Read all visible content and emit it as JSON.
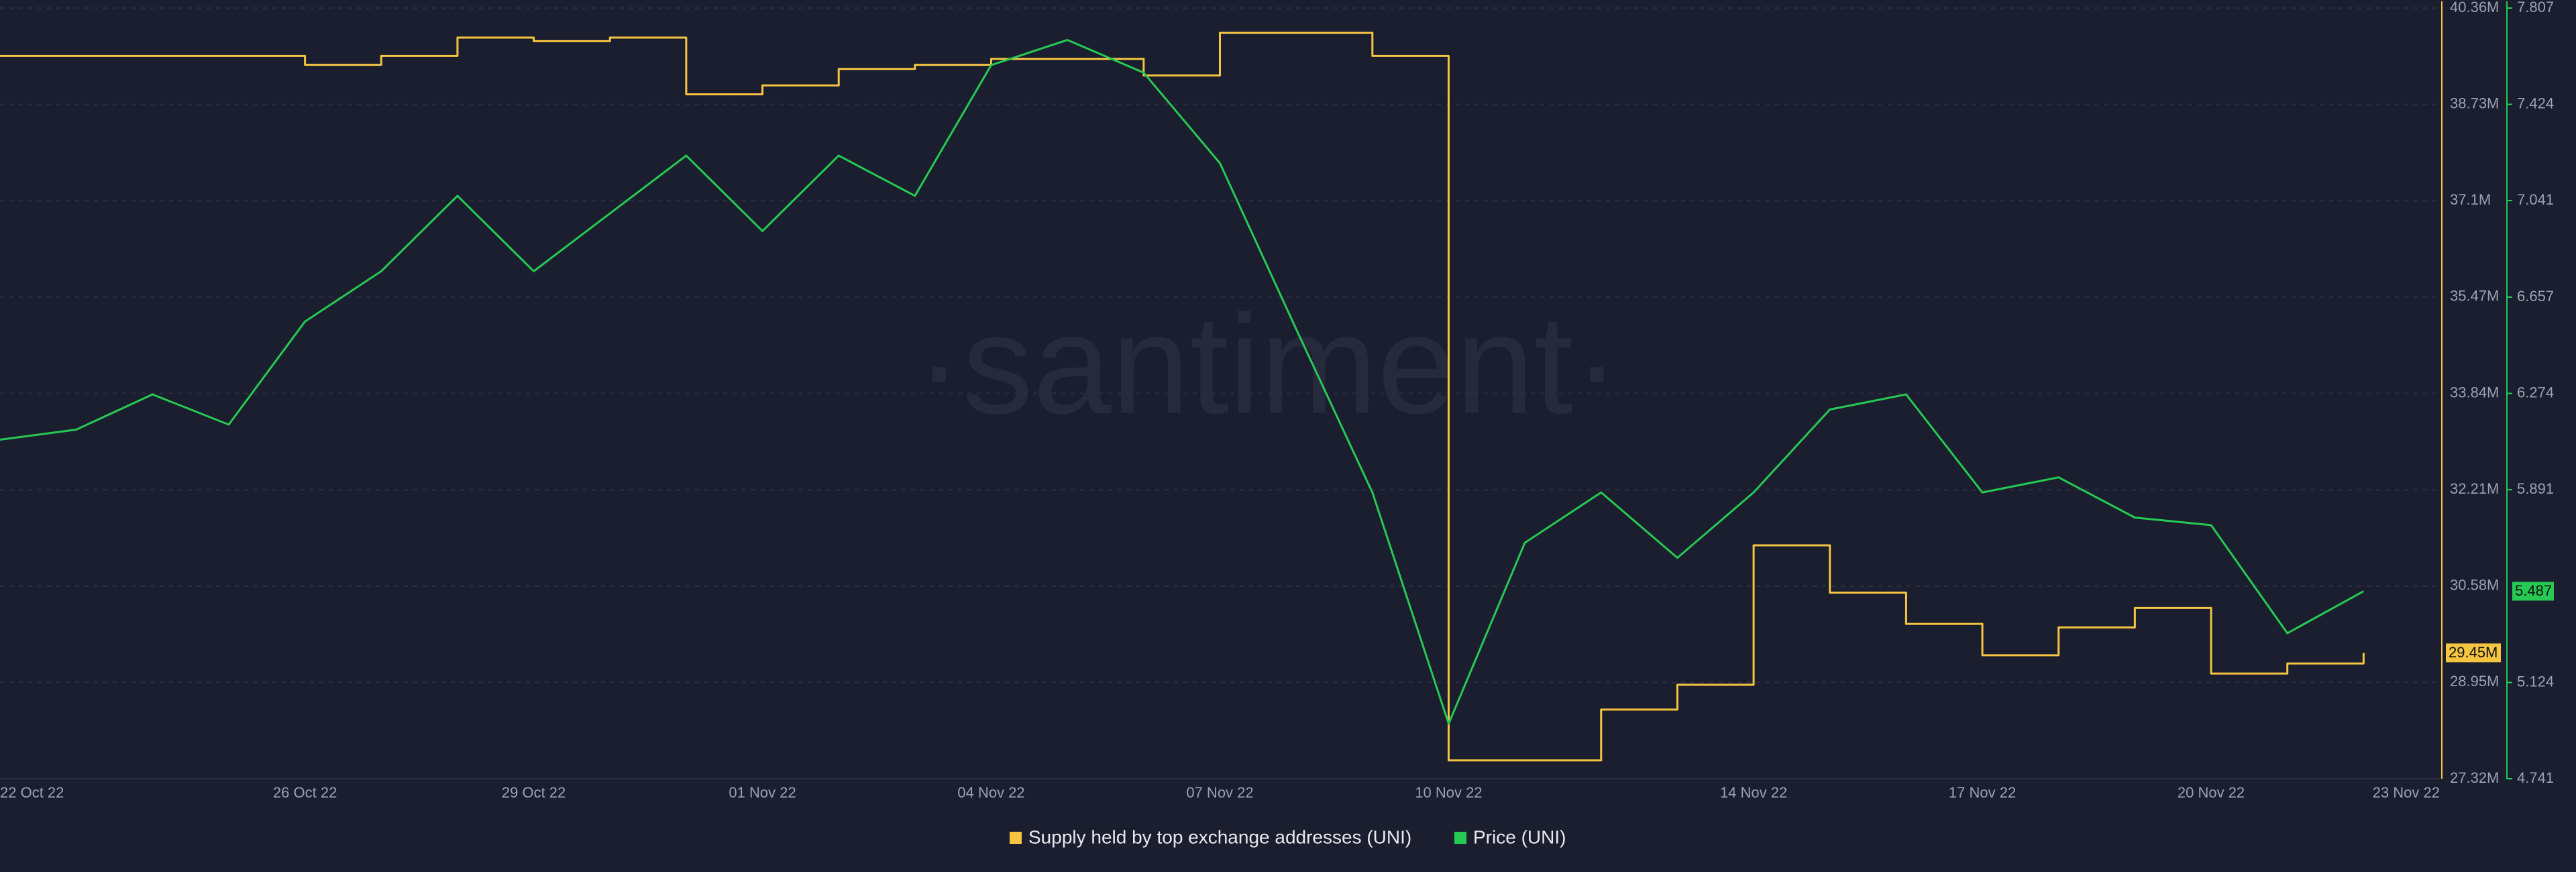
{
  "chart_data": {
    "type": "line",
    "watermark": "·santiment·",
    "x": [
      "2022-10-22",
      "2022-10-23",
      "2022-10-24",
      "2022-10-25",
      "2022-10-26",
      "2022-10-27",
      "2022-10-28",
      "2022-10-29",
      "2022-10-30",
      "2022-10-31",
      "2022-11-01",
      "2022-11-02",
      "2022-11-03",
      "2022-11-04",
      "2022-11-05",
      "2022-11-06",
      "2022-11-07",
      "2022-11-08",
      "2022-11-09",
      "2022-11-10",
      "2022-11-11",
      "2022-11-12",
      "2022-11-13",
      "2022-11-14",
      "2022-11-15",
      "2022-11-16",
      "2022-11-17",
      "2022-11-18",
      "2022-11-19",
      "2022-11-20",
      "2022-11-21",
      "2022-11-22"
    ],
    "xlim": [
      "2022-10-22",
      "2022-11-23"
    ],
    "xticks": [
      {
        "value": "2022-10-22",
        "label": "22 Oct 22"
      },
      {
        "value": "2022-10-26",
        "label": "26 Oct 22"
      },
      {
        "value": "2022-10-29",
        "label": "29 Oct 22"
      },
      {
        "value": "2022-11-01",
        "label": "01 Nov 22"
      },
      {
        "value": "2022-11-04",
        "label": "04 Nov 22"
      },
      {
        "value": "2022-11-07",
        "label": "07 Nov 22"
      },
      {
        "value": "2022-11-10",
        "label": "10 Nov 22"
      },
      {
        "value": "2022-11-14",
        "label": "14 Nov 22"
      },
      {
        "value": "2022-11-17",
        "label": "17 Nov 22"
      },
      {
        "value": "2022-11-20",
        "label": "20 Nov 22"
      },
      {
        "value": "2022-11-23",
        "label": "23 Nov 22"
      }
    ],
    "ylim": [
      27320000,
      40360000
    ],
    "yticks": [
      {
        "value": 27320000,
        "label": "27.32M"
      },
      {
        "value": 28950000,
        "label": "28.95M"
      },
      {
        "value": 30580000,
        "label": "30.58M"
      },
      {
        "value": 32210000,
        "label": "32.21M"
      },
      {
        "value": 33840000,
        "label": "33.84M"
      },
      {
        "value": 35470000,
        "label": "35.47M"
      },
      {
        "value": 37100000,
        "label": "37.1M"
      },
      {
        "value": 38730000,
        "label": "38.73M"
      },
      {
        "value": 40360000,
        "label": "40.36M"
      }
    ],
    "y2lim": [
      4.741,
      7.807
    ],
    "y2ticks": [
      4.741,
      5.124,
      5.891,
      6.274,
      6.657,
      7.041,
      7.424,
      7.807
    ],
    "grid": true,
    "series": [
      {
        "name": "Supply held by top exchange addresses (UNI)",
        "color": "#f5c542",
        "axis": "y",
        "step": true,
        "last_label": "29.45M",
        "values": [
          39550000,
          39550000,
          39550000,
          39550000,
          39400000,
          39550000,
          39860000,
          39800000,
          39860000,
          38900000,
          39050000,
          39330000,
          39400000,
          39500000,
          39500000,
          39220000,
          39940000,
          39940000,
          39550000,
          27630000,
          27630000,
          28490000,
          28910000,
          31270000,
          30470000,
          29940000,
          29410000,
          29880000,
          30210000,
          29100000,
          29270000,
          29450000
        ]
      },
      {
        "name": "Price (UNI)",
        "color": "#26c953",
        "axis": "y2",
        "last_label": "5.487",
        "values": [
          6.09,
          6.13,
          6.27,
          6.15,
          6.56,
          6.76,
          7.06,
          6.76,
          6.99,
          7.22,
          6.92,
          7.22,
          7.06,
          7.58,
          7.68,
          7.55,
          7.19,
          6.53,
          5.88,
          4.96,
          5.68,
          5.88,
          5.62,
          5.88,
          6.21,
          6.27,
          5.88,
          5.94,
          5.78,
          5.75,
          5.32,
          5.487
        ]
      }
    ]
  }
}
